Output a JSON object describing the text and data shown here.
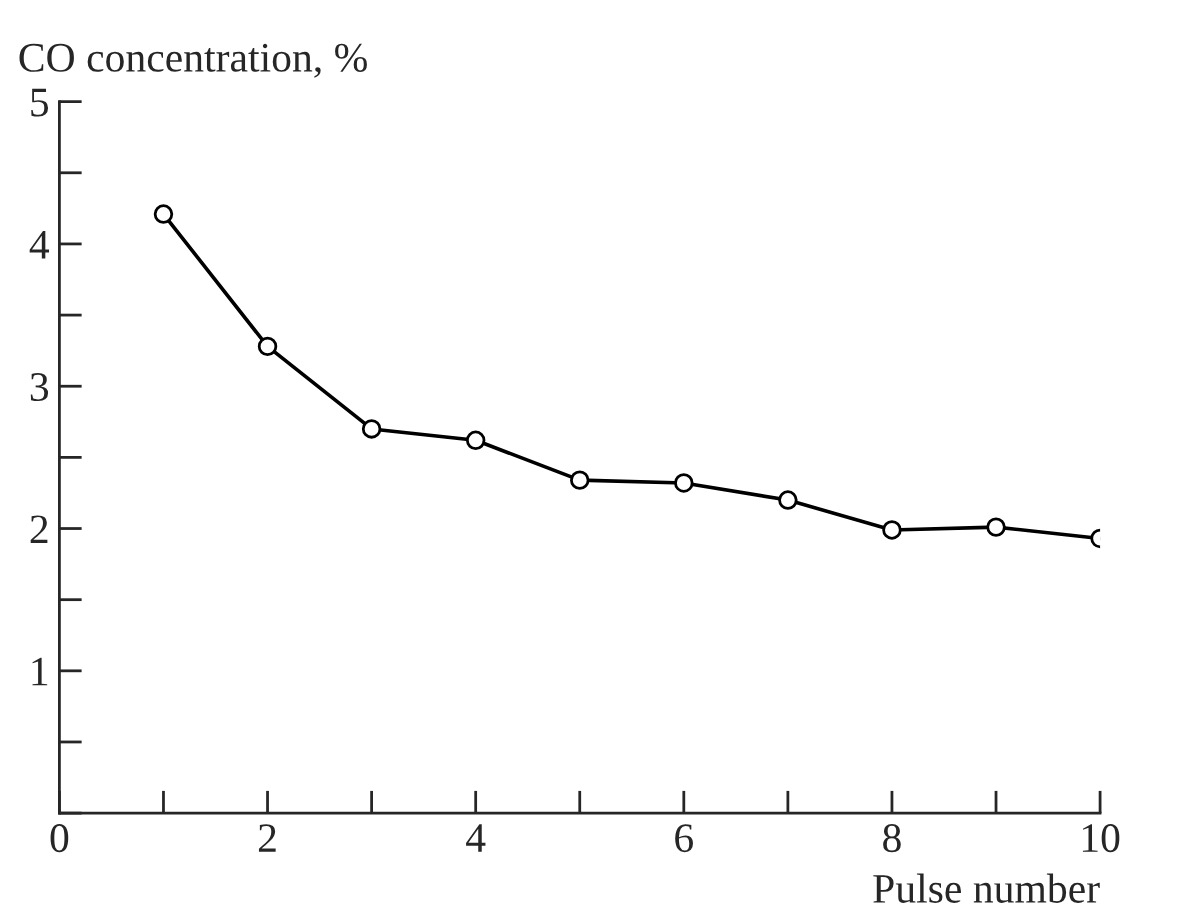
{
  "chart_data": {
    "type": "line",
    "xlabel": "Pulse number",
    "ylabel": "CO concentration, %",
    "x": [
      1,
      2,
      3,
      4,
      5,
      6,
      7,
      8,
      9,
      10
    ],
    "series": [
      {
        "color": "#000000",
        "values": [
          4.21,
          3.28,
          2.7,
          2.62,
          2.34,
          2.32,
          2.2,
          1.99,
          2.01,
          1.93
        ]
      }
    ],
    "marker": "circle",
    "line_style": "solid",
    "xlim": [
      0,
      10
    ],
    "ylim": [
      0,
      5
    ],
    "xticks": [
      0,
      {
        "value": 1,
        "label": null
      },
      2,
      {
        "value": 3,
        "label": null
      },
      4,
      {
        "value": 5,
        "label": null
      },
      6,
      {
        "value": 7,
        "label": null
      },
      8,
      {
        "value": 9,
        "label": null
      },
      10
    ],
    "yticks": [
      {
        "value": 0,
        "label": null
      },
      {
        "value": 0.5,
        "label": null
      },
      1,
      {
        "value": 1.5,
        "label": null
      },
      2,
      {
        "value": 2.5,
        "label": null
      },
      3,
      {
        "value": 3.5,
        "label": null
      },
      4,
      {
        "value": 4.5,
        "label": null
      },
      5
    ],
    "grid": false,
    "legend": false
  }
}
